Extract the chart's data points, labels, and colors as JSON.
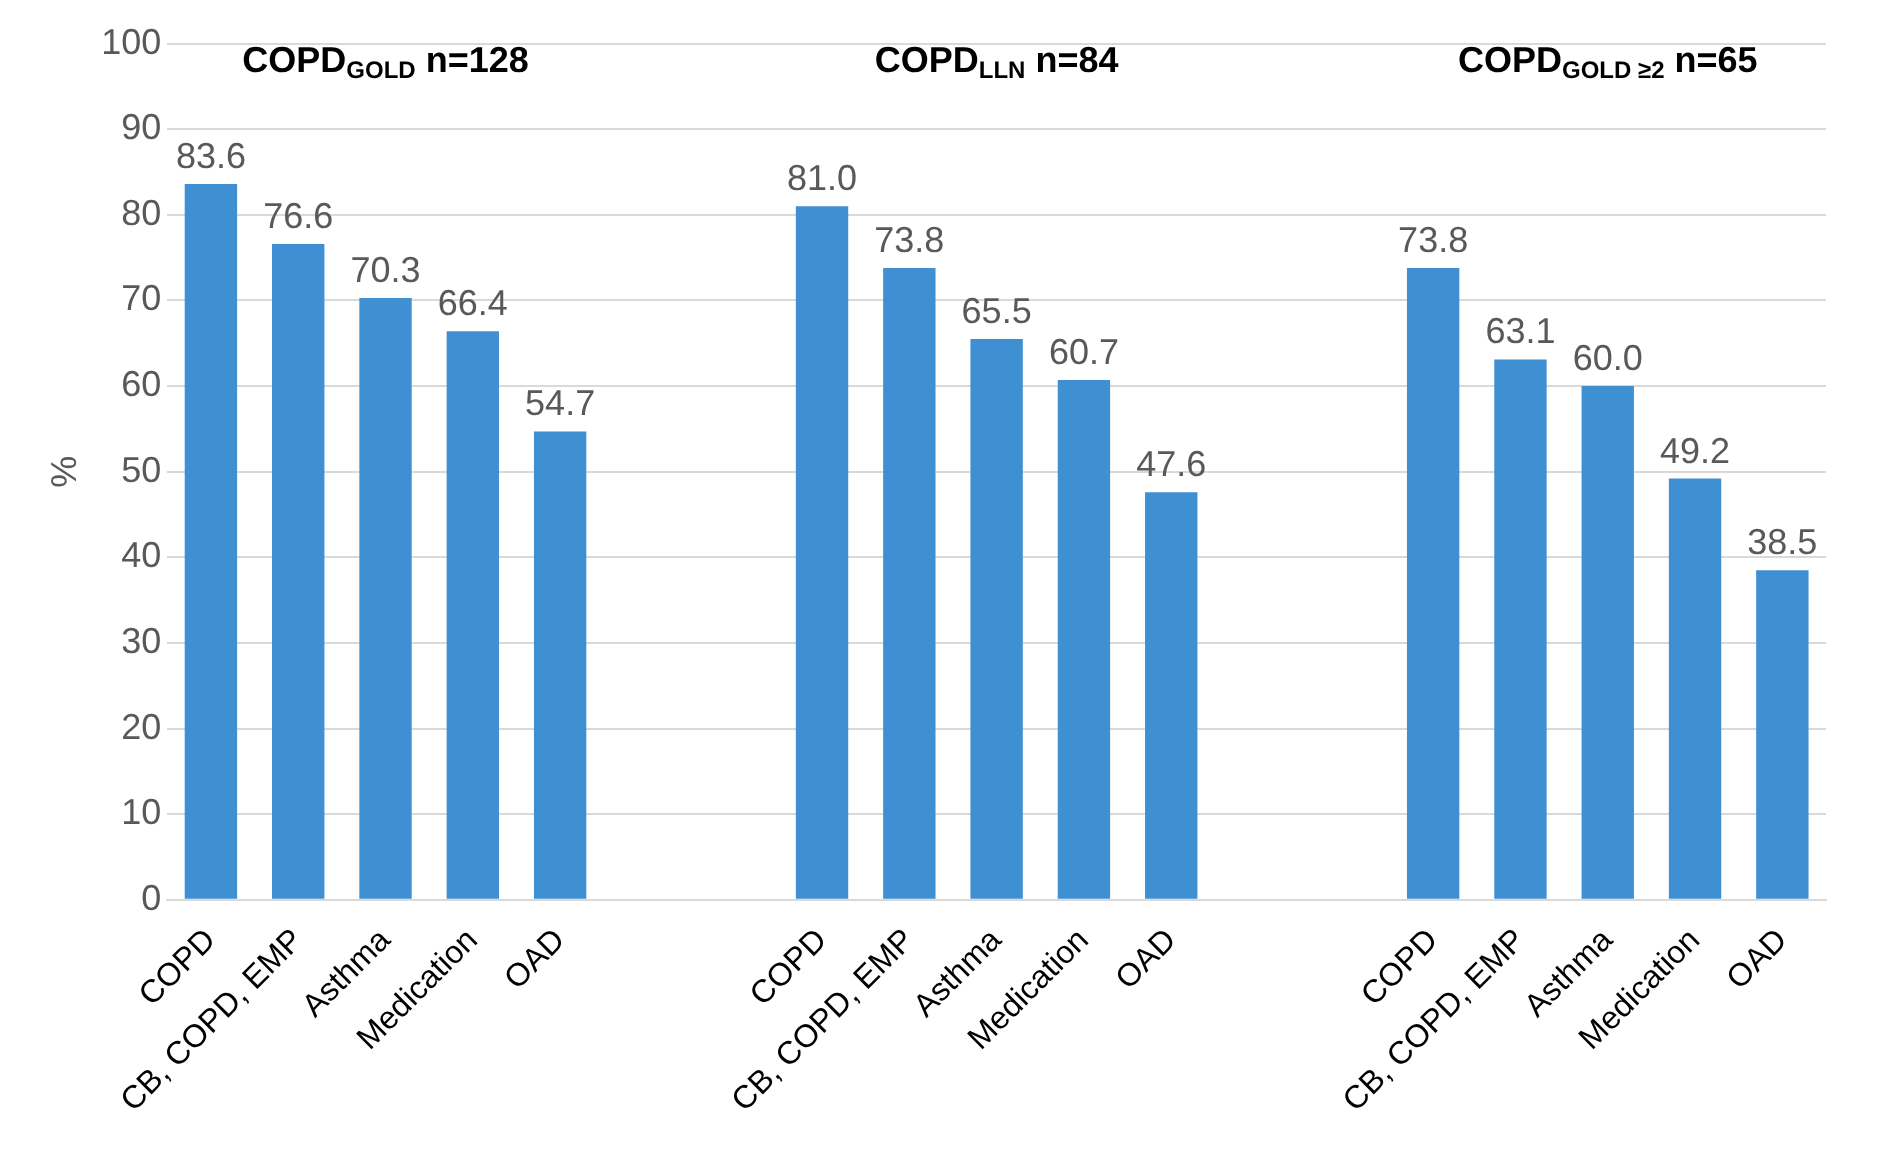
{
  "chart_data": {
    "type": "bar",
    "ylabel": "%",
    "categories": [
      "COPD",
      "CB, COPD, EMP",
      "Asthma",
      "Medication",
      "OAD",
      null,
      null,
      "COPD",
      "CB, COPD, EMP",
      "Asthma",
      "Medication",
      "OAD",
      null,
      null,
      "COPD",
      "CB, COPD, EMP",
      "Asthma",
      "Medication",
      "OAD"
    ],
    "values": [
      83.6,
      76.6,
      70.3,
      66.4,
      54.7,
      null,
      null,
      81.0,
      73.8,
      65.5,
      60.7,
      47.6,
      null,
      null,
      73.8,
      63.1,
      60.0,
      49.2,
      38.5
    ],
    "color": "#3f8fd3",
    "ylim": [
      0,
      100
    ],
    "yticks": [
      0,
      10,
      20,
      30,
      40,
      50,
      60,
      70,
      80,
      90,
      100
    ],
    "grid": "y",
    "legend": false,
    "value_labels": [
      "83.6",
      "76.6",
      "70.3",
      "66.4",
      "54.7",
      null,
      null,
      "81.0",
      "73.8",
      "65.5",
      "60.7",
      "47.6",
      null,
      null,
      "73.8",
      "63.1",
      "60.0",
      "49.2",
      "38.5"
    ],
    "annotations": [
      "COPD$_{GOLD}$ n=128",
      "COPD$_{LLN}$ n=84",
      "COPD$_{GOLD ≥2}$ n=65"
    ]
  }
}
